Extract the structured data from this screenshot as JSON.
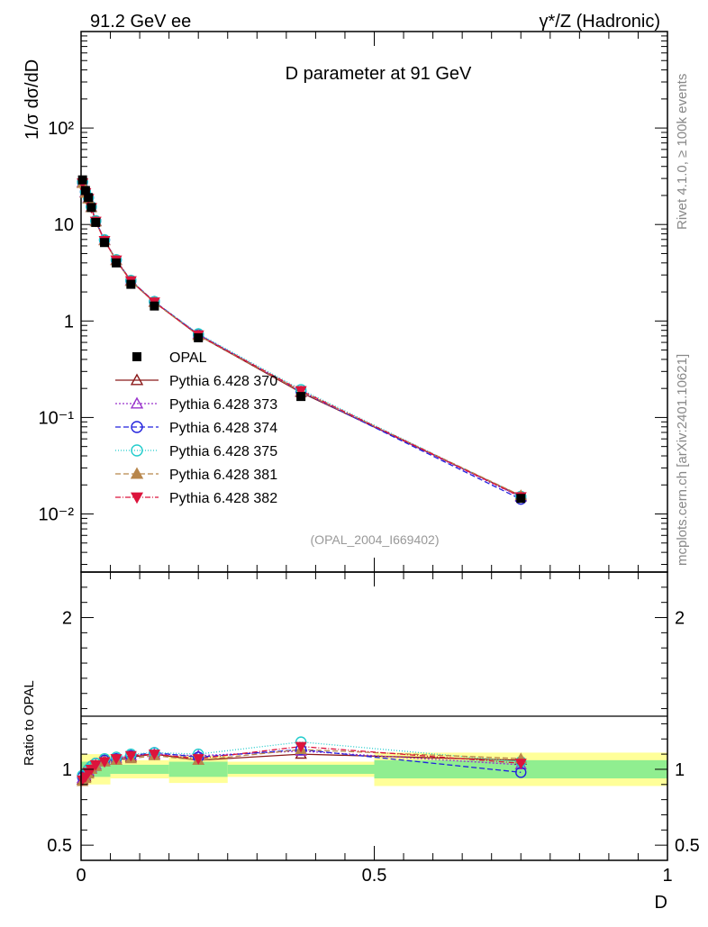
{
  "header": {
    "left_title": "91.2 GeV ee",
    "right_title": "γ*/Z (Hadronic)"
  },
  "side_labels": {
    "rivet": "Rivet 4.1.0, ≥ 100k events",
    "mcplots": "mcplots.cern.ch [arXiv:2401.10621]"
  },
  "chart_data": {
    "type": "line",
    "title": "D parameter at 91 GeV",
    "analysis_id": "(OPAL_2004_I669402)",
    "xlabel": "D",
    "ylabel_main": "1/σ  dσ/dD",
    "ylabel_ratio": "Ratio to OPAL",
    "xlim": [
      0,
      1
    ],
    "ylim_main_log": [
      0.0025,
      1000
    ],
    "ylim_ratio": [
      0.4,
      2.3
    ],
    "x_ticks": [
      "0",
      "0.5",
      "1"
    ],
    "y_ticks_main": [
      "10⁻²",
      "10⁻¹",
      "1",
      "10",
      "10²"
    ],
    "y_ticks_ratio": [
      "0.5",
      "1",
      "2"
    ],
    "x": [
      0.0025,
      0.0075,
      0.0125,
      0.0175,
      0.025,
      0.04,
      0.06,
      0.085,
      0.125,
      0.2,
      0.375,
      0.75
    ],
    "data": {
      "name": "OPAL",
      "values": [
        29.0,
        22.5,
        19.0,
        15.0,
        10.5,
        6.5,
        4.0,
        2.4,
        1.43,
        0.67,
        0.165,
        0.0145
      ]
    },
    "ratio_bands": [
      {
        "x0": 0.0,
        "x1": 0.05,
        "inner": 0.05,
        "outer": 0.1
      },
      {
        "x0": 0.05,
        "x1": 0.15,
        "inner": 0.03,
        "outer": 0.06
      },
      {
        "x0": 0.15,
        "x1": 0.25,
        "inner": 0.05,
        "outer": 0.09
      },
      {
        "x0": 0.25,
        "x1": 0.5,
        "inner": 0.03,
        "outer": 0.05
      },
      {
        "x0": 0.5,
        "x1": 1.0,
        "inner": 0.06,
        "outer": 0.11
      }
    ],
    "series": [
      {
        "name": "Pythia 6.428 370",
        "color": "#8b1a1a",
        "dash": "",
        "marker": "triangle-open",
        "ratio": [
          0.93,
          0.95,
          0.98,
          1.0,
          1.02,
          1.05,
          1.06,
          1.08,
          1.1,
          1.06,
          1.1,
          1.06
        ]
      },
      {
        "name": "Pythia 6.428 373",
        "color": "#9932cc",
        "dash": "2,2",
        "marker": "triangle-open",
        "ratio": [
          0.94,
          0.96,
          0.99,
          1.01,
          1.03,
          1.06,
          1.07,
          1.09,
          1.1,
          1.09,
          1.12,
          1.03
        ]
      },
      {
        "name": "Pythia 6.428 374",
        "color": "#2222dd",
        "dash": "6,3",
        "marker": "circle-open",
        "ratio": [
          0.95,
          0.97,
          1.0,
          1.02,
          1.04,
          1.06,
          1.07,
          1.09,
          1.11,
          1.08,
          1.13,
          0.98
        ]
      },
      {
        "name": "Pythia 6.428 375",
        "color": "#22cccc",
        "dash": "1,2",
        "marker": "circle-open",
        "ratio": [
          0.96,
          0.97,
          1.0,
          1.02,
          1.04,
          1.07,
          1.08,
          1.1,
          1.11,
          1.1,
          1.18,
          1.05
        ]
      },
      {
        "name": "Pythia 6.428 381",
        "color": "#b8864b",
        "dash": "6,3",
        "marker": "triangle-filled",
        "ratio": [
          0.92,
          0.94,
          0.97,
          1.0,
          1.02,
          1.05,
          1.06,
          1.07,
          1.09,
          1.06,
          1.13,
          1.07
        ]
      },
      {
        "name": "Pythia 6.428 382",
        "color": "#dc143c",
        "dash": "6,2,1,2",
        "marker": "triangle-down-filled",
        "ratio": [
          0.93,
          0.95,
          0.98,
          1.0,
          1.03,
          1.05,
          1.07,
          1.09,
          1.1,
          1.07,
          1.15,
          1.04
        ]
      }
    ]
  }
}
